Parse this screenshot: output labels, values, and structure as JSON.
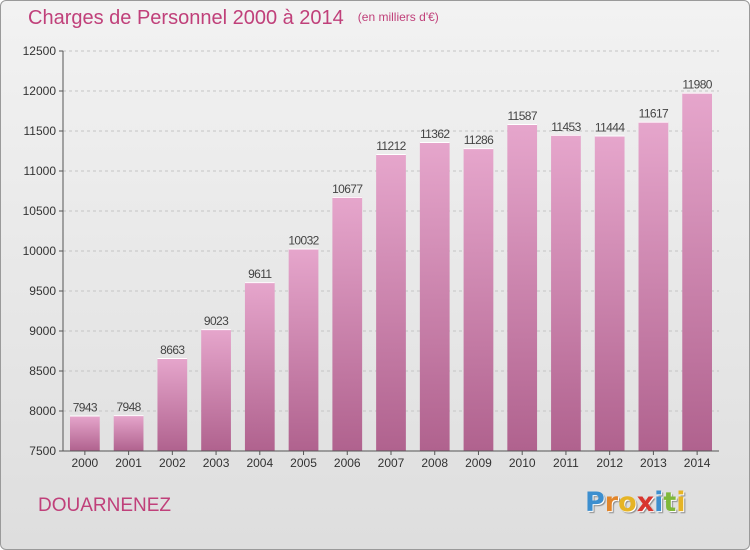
{
  "title": "Charges de Personnel 2000 à 2014",
  "subtitle": "(en milliers d'€)",
  "location": "DOUARNENEZ",
  "logo": {
    "letters": [
      "P",
      "r",
      "o",
      "x",
      "i",
      "t",
      "i"
    ],
    "colors": [
      "#3d8fcf",
      "#e2862b",
      "#e6b425",
      "#d8362f",
      "#3d8fcf",
      "#7fb83a",
      "#e6b425"
    ]
  },
  "colors": {
    "bar_top": "#e6a6cc",
    "bar_bottom": "#b0628e",
    "text_accent": "#c0407a"
  },
  "chart_data": {
    "type": "bar",
    "title": "Charges de Personnel 2000 à 2014",
    "subtitle": "(en milliers d'€)",
    "categories": [
      "2000",
      "2001",
      "2002",
      "2003",
      "2004",
      "2005",
      "2006",
      "2007",
      "2008",
      "2009",
      "2010",
      "2011",
      "2012",
      "2013",
      "2014"
    ],
    "values": [
      7943,
      7948,
      8663,
      9023,
      9611,
      10032,
      10677,
      11212,
      11362,
      11286,
      11587,
      11453,
      11444,
      11617,
      11980
    ],
    "ylim": [
      7500,
      12500
    ],
    "yticks": [
      7500,
      8000,
      8500,
      9000,
      9500,
      10000,
      10500,
      11000,
      11500,
      12000,
      12500
    ],
    "grid": true,
    "xlabel": "",
    "ylabel": ""
  }
}
